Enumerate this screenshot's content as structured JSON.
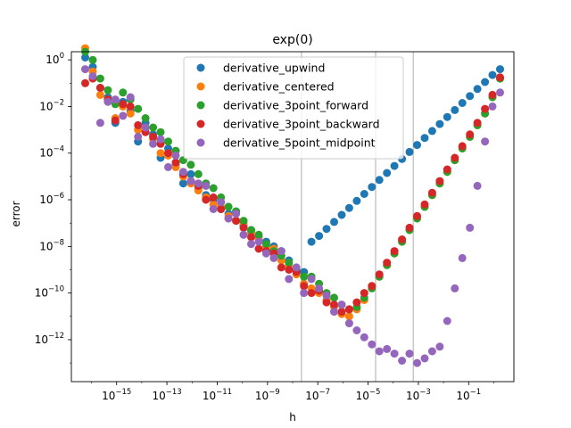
{
  "chart_data": {
    "type": "scatter",
    "title": "exp(0)",
    "xlabel": "h",
    "ylabel": "error",
    "xscale": "log",
    "yscale": "log",
    "xlim_exp": [
      -16.8,
      0.8
    ],
    "ylim_exp": [
      -13.8,
      0.35
    ],
    "x_ticks": [
      {
        "base": "10",
        "exp": "−15",
        "value_exp": -15
      },
      {
        "base": "10",
        "exp": "−13",
        "value_exp": -13
      },
      {
        "base": "10",
        "exp": "−11",
        "value_exp": -11
      },
      {
        "base": "10",
        "exp": "−9",
        "value_exp": -9
      },
      {
        "base": "10",
        "exp": "−7",
        "value_exp": -7
      },
      {
        "base": "10",
        "exp": "−5",
        "value_exp": -5
      },
      {
        "base": "10",
        "exp": "−3",
        "value_exp": -3
      },
      {
        "base": "10",
        "exp": "−1",
        "value_exp": -1
      }
    ],
    "y_ticks": [
      {
        "base": "10",
        "exp": "0",
        "value_exp": 0
      },
      {
        "base": "10",
        "exp": "−2",
        "value_exp": -2
      },
      {
        "base": "10",
        "exp": "−4",
        "value_exp": -4
      },
      {
        "base": "10",
        "exp": "−6",
        "value_exp": -6
      },
      {
        "base": "10",
        "exp": "−8",
        "value_exp": -8
      },
      {
        "base": "10",
        "exp": "−10",
        "value_exp": -10
      },
      {
        "base": "10",
        "exp": "−12",
        "value_exp": -12
      }
    ],
    "vlines_exp": [
      -7.65,
      -4.7,
      -3.2
    ],
    "legend_position": "upper center",
    "legend": [
      {
        "name": "derivative_upwind",
        "color": "#1f77b4"
      },
      {
        "name": "derivative_centered",
        "color": "#ff7f0e"
      },
      {
        "name": "derivative_3point_forward",
        "color": "#2ca02c"
      },
      {
        "name": "derivative_3point_backward",
        "color": "#d62728"
      },
      {
        "name": "derivative_5point_midpoint",
        "color": "#9467bd"
      }
    ],
    "series": [
      {
        "name": "derivative_upwind",
        "color": "#1f77b4",
        "x_exp": [
          -16.25,
          -15.95,
          -15.65,
          -15.35,
          -15.05,
          -14.75,
          -14.45,
          -14.15,
          -13.85,
          -13.55,
          -13.25,
          -12.95,
          -12.65,
          -12.35,
          -12.05,
          -11.75,
          -11.45,
          -11.15,
          -10.85,
          -10.55,
          -10.25,
          -9.95,
          -9.65,
          -9.35,
          -9.05,
          -8.75,
          -8.45,
          -8.15,
          -7.85,
          -7.55,
          -7.25,
          -6.95,
          -6.65,
          -6.35,
          -6.05,
          -5.75,
          -5.45,
          -5.15,
          -4.85,
          -4.55,
          -4.25,
          -3.95,
          -3.65,
          -3.35,
          -3.05,
          -2.75,
          -2.45,
          -2.15,
          -1.85,
          -1.55,
          -1.25,
          -0.95,
          -0.65,
          -0.35,
          -0.05,
          0.25
        ],
        "y_exp": [
          0.1,
          -0.3,
          -1.2,
          -1.6,
          -2.7,
          -1.8,
          -2.2,
          -3.5,
          -2.7,
          -3.2,
          -4.2,
          -3.8,
          -4.5,
          -5.3,
          -4.9,
          -5.5,
          -5.8,
          -6.0,
          -6.4,
          -6.6,
          -6.5,
          -7.1,
          -7.3,
          -7.6,
          -7.8,
          -8.0,
          -8.2,
          -8.6,
          -9.0,
          -9.1,
          -7.8,
          -7.55,
          -7.25,
          -6.95,
          -6.65,
          -6.35,
          -6.05,
          -5.75,
          -5.45,
          -5.15,
          -4.85,
          -4.55,
          -4.25,
          -3.95,
          -3.65,
          -3.35,
          -3.05,
          -2.75,
          -2.45,
          -2.15,
          -1.85,
          -1.55,
          -1.25,
          -0.95,
          -0.65,
          -0.4
        ]
      },
      {
        "name": "derivative_centered",
        "color": "#ff7f0e",
        "x_exp": [
          -16.25,
          -15.95,
          -15.65,
          -15.35,
          -15.05,
          -14.75,
          -14.45,
          -14.15,
          -13.85,
          -13.55,
          -13.25,
          -12.95,
          -12.65,
          -12.35,
          -12.05,
          -11.75,
          -11.45,
          -11.15,
          -10.85,
          -10.55,
          -10.25,
          -9.95,
          -9.65,
          -9.35,
          -9.05,
          -8.75,
          -8.45,
          -8.15,
          -7.85,
          -7.55,
          -7.25,
          -6.95,
          -6.65,
          -6.35,
          -6.05,
          -5.75,
          -5.45,
          -5.15,
          -4.85,
          -4.55,
          -4.25,
          -3.95,
          -3.65,
          -3.35,
          -3.05,
          -2.75,
          -2.45,
          -2.15,
          -1.85,
          -1.55,
          -1.25,
          -0.95,
          -0.65,
          -0.35,
          -0.05,
          0.25
        ],
        "y_exp": [
          0.5,
          -0.5,
          -1.5,
          -1.7,
          -2.5,
          -2.0,
          -2.3,
          -3.0,
          -2.9,
          -3.4,
          -4.0,
          -4.1,
          -4.6,
          -5.0,
          -5.3,
          -5.6,
          -5.9,
          -6.2,
          -6.3,
          -6.7,
          -6.9,
          -7.0,
          -7.4,
          -7.7,
          -8.0,
          -8.1,
          -8.6,
          -8.8,
          -9.2,
          -9.6,
          -9.8,
          -10.0,
          -10.3,
          -10.6,
          -10.9,
          -11.0,
          -10.7,
          -10.3,
          -9.7,
          -9.3,
          -8.8,
          -8.3,
          -7.8,
          -7.3,
          -6.8,
          -6.3,
          -5.8,
          -5.3,
          -4.8,
          -4.3,
          -3.8,
          -3.3,
          -2.8,
          -2.3,
          -1.6,
          -0.8
        ]
      },
      {
        "name": "derivative_3point_forward",
        "color": "#2ca02c",
        "x_exp": [
          -16.25,
          -15.95,
          -15.65,
          -15.35,
          -15.05,
          -14.75,
          -14.45,
          -14.15,
          -13.85,
          -13.55,
          -13.25,
          -12.95,
          -12.65,
          -12.35,
          -12.05,
          -11.75,
          -11.45,
          -11.15,
          -10.85,
          -10.55,
          -10.25,
          -9.95,
          -9.65,
          -9.35,
          -9.05,
          -8.75,
          -8.45,
          -8.15,
          -7.85,
          -7.55,
          -7.25,
          -6.95,
          -6.65,
          -6.35,
          -6.05,
          -5.75,
          -5.45,
          -5.15,
          -4.85,
          -4.55,
          -4.25,
          -3.95,
          -3.65,
          -3.35,
          -3.05,
          -2.75,
          -2.45,
          -2.15,
          -1.85,
          -1.55,
          -1.25,
          -0.95,
          -0.65,
          -0.35,
          -0.05,
          0.25
        ],
        "y_exp": [
          0.35,
          0.0,
          -0.8,
          -1.3,
          -1.9,
          -1.4,
          -1.7,
          -2.1,
          -2.5,
          -2.9,
          -3.1,
          -3.5,
          -3.9,
          -4.3,
          -4.5,
          -4.9,
          -5.3,
          -5.5,
          -5.9,
          -6.3,
          -6.5,
          -6.9,
          -7.3,
          -7.5,
          -7.9,
          -8.2,
          -8.4,
          -8.7,
          -9.0,
          -9.3,
          -9.3,
          -9.6,
          -10.0,
          -10.2,
          -10.5,
          -10.7,
          -10.6,
          -10.2,
          -9.8,
          -9.3,
          -8.8,
          -8.3,
          -7.8,
          -7.3,
          -6.8,
          -6.3,
          -5.8,
          -5.3,
          -4.8,
          -4.3,
          -3.8,
          -3.3,
          -2.8,
          -2.3,
          -1.6,
          -0.8
        ]
      },
      {
        "name": "derivative_3point_backward",
        "color": "#d62728",
        "x_exp": [
          -16.25,
          -15.95,
          -15.65,
          -15.35,
          -15.05,
          -14.75,
          -14.45,
          -14.15,
          -13.85,
          -13.55,
          -13.25,
          -12.95,
          -12.65,
          -12.35,
          -12.05,
          -11.75,
          -11.45,
          -11.15,
          -10.85,
          -10.55,
          -10.25,
          -9.95,
          -9.65,
          -9.35,
          -9.05,
          -8.75,
          -8.45,
          -8.15,
          -7.85,
          -7.55,
          -7.25,
          -6.95,
          -6.65,
          -6.35,
          -6.05,
          -5.75,
          -5.45,
          -5.15,
          -4.85,
          -4.55,
          -4.25,
          -3.95,
          -3.65,
          -3.35,
          -3.05,
          -2.75,
          -2.45,
          -2.15,
          -1.85,
          -1.55,
          -1.25,
          -0.95,
          -0.65,
          -0.35,
          -0.05,
          0.25
        ],
        "y_exp": [
          -1.0,
          -0.8,
          -1.2,
          -1.7,
          -2.6,
          -1.9,
          -2.0,
          -2.8,
          -3.1,
          -3.3,
          -3.6,
          -4.0,
          -4.4,
          -4.9,
          -5.2,
          -5.4,
          -6.0,
          -5.9,
          -6.4,
          -6.8,
          -6.9,
          -7.2,
          -7.6,
          -8.1,
          -8.2,
          -8.3,
          -8.9,
          -9.0,
          -9.1,
          -9.7,
          -10.0,
          -9.9,
          -10.4,
          -10.5,
          -10.8,
          -10.7,
          -10.4,
          -10.0,
          -9.7,
          -9.2,
          -8.7,
          -8.2,
          -7.7,
          -7.2,
          -6.7,
          -6.2,
          -5.7,
          -5.2,
          -4.7,
          -4.2,
          -3.7,
          -3.2,
          -2.7,
          -2.1,
          -1.5,
          -0.75
        ]
      },
      {
        "name": "derivative_5point_midpoint",
        "color": "#9467bd",
        "x_exp": [
          -16.25,
          -15.95,
          -15.65,
          -15.35,
          -15.05,
          -14.75,
          -14.45,
          -14.15,
          -13.85,
          -13.55,
          -13.25,
          -12.95,
          -12.65,
          -12.35,
          -12.05,
          -11.75,
          -11.45,
          -11.15,
          -10.85,
          -10.55,
          -10.25,
          -9.95,
          -9.65,
          -9.35,
          -9.05,
          -8.75,
          -8.45,
          -8.15,
          -7.85,
          -7.55,
          -7.25,
          -6.95,
          -6.65,
          -6.35,
          -6.05,
          -5.75,
          -5.45,
          -5.15,
          -4.85,
          -4.55,
          -4.25,
          -3.95,
          -3.65,
          -3.35,
          -3.05,
          -2.75,
          -2.45,
          -2.15,
          -1.85,
          -1.55,
          -1.25,
          -0.95,
          -0.65,
          -0.35,
          -0.05,
          0.25
        ],
        "y_exp": [
          -0.4,
          -0.7,
          -2.7,
          -1.8,
          -1.7,
          -2.4,
          -1.6,
          -3.3,
          -2.9,
          -3.6,
          -3.4,
          -4.6,
          -4.1,
          -4.8,
          -5.2,
          -5.3,
          -5.4,
          -6.4,
          -6.1,
          -6.8,
          -6.6,
          -7.5,
          -7.9,
          -7.8,
          -8.3,
          -8.5,
          -8.2,
          -9.4,
          -8.9,
          -10.0,
          -9.4,
          -9.8,
          -10.1,
          -10.8,
          -10.5,
          -11.3,
          -11.6,
          -11.9,
          -12.2,
          -12.5,
          -12.4,
          -12.6,
          -12.9,
          -12.6,
          -13.0,
          -12.8,
          -12.5,
          -12.3,
          -11.2,
          -9.8,
          -8.5,
          -7.2,
          -5.4,
          -3.5,
          -2.0,
          -1.4
        ]
      }
    ]
  }
}
